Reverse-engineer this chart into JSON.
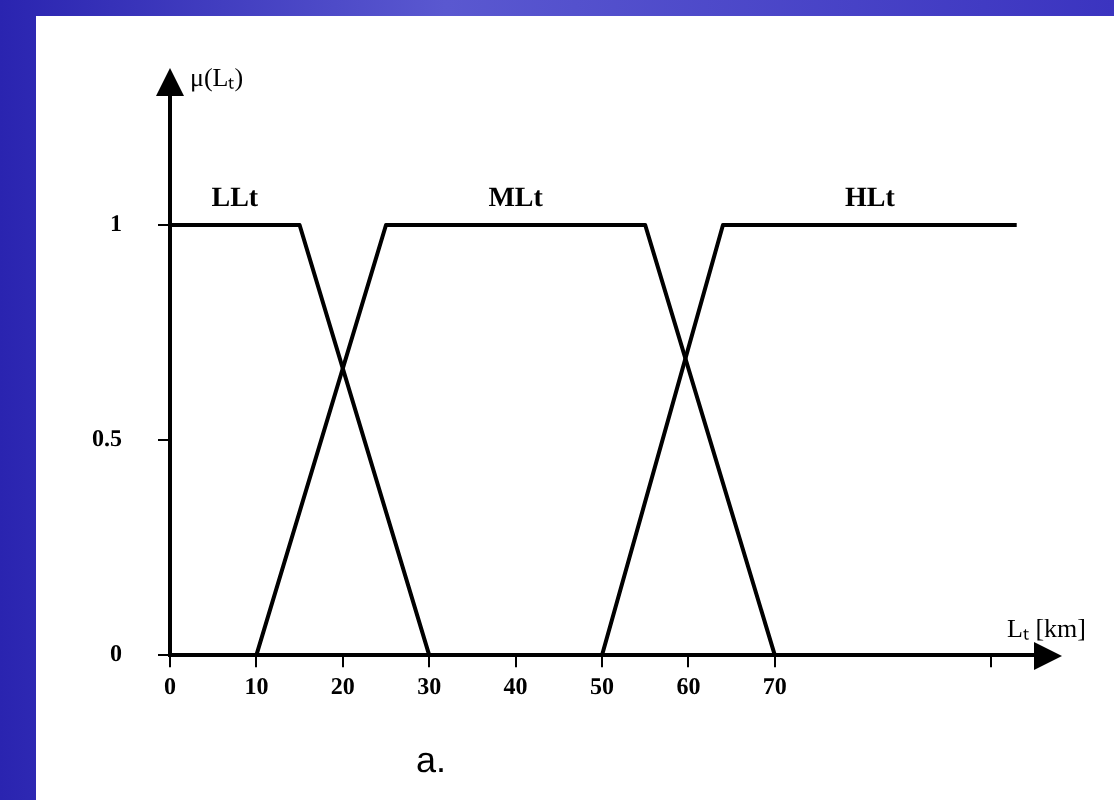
{
  "chart_data": {
    "type": "line",
    "xlabel": "Lₜ [km]",
    "ylabel": "μ(Lₜ)",
    "annotations": [
      "a."
    ],
    "series": [
      {
        "name": "LLt",
        "color": "#000000",
        "x": [
          0,
          15,
          30
        ],
        "values": [
          1,
          1,
          0
        ]
      },
      {
        "name": "MLt",
        "color": "#000000",
        "x": [
          10,
          25,
          55,
          70
        ],
        "values": [
          0,
          1,
          1,
          0
        ]
      },
      {
        "name": "HLt",
        "color": "#000000",
        "x": [
          50,
          64,
          98
        ],
        "values": [
          0,
          1,
          1
        ]
      }
    ],
    "xlim": [
      0,
      100
    ],
    "xticks": [
      0,
      10,
      20,
      30,
      40,
      50,
      60,
      70,
      {
        "value": 95,
        "label": null
      }
    ],
    "ylim": [
      0,
      1.3
    ],
    "yticks": [
      0,
      0.5,
      1
    ],
    "grid": false,
    "legend": false,
    "marker": "none",
    "line_style": "solid"
  }
}
